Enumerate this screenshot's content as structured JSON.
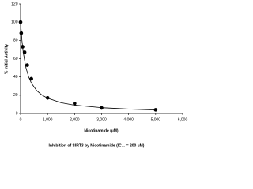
{
  "chart_data": {
    "type": "scatter",
    "title": "Inhibition of SIRT3 by Nicotinamide (IC₅₀ = 200 µM)",
    "xlabel": "Nicotinamide (µM)",
    "ylabel": "% Initial Activity",
    "x": [
      0,
      25,
      75,
      150,
      250,
      400,
      1000,
      2000,
      3000,
      5000
    ],
    "values": [
      100,
      88,
      73,
      67,
      53,
      38,
      17,
      11,
      6,
      4
    ],
    "color": "#000000",
    "fit": {
      "x": [
        0,
        50,
        100,
        200,
        300,
        400,
        600,
        800,
        1000,
        1500,
        2000,
        3000,
        4000,
        5000
      ],
      "values": [
        100,
        80,
        66.7,
        50,
        40,
        33.3,
        25,
        20,
        16.7,
        11.8,
        9.1,
        6.3,
        4.8,
        3.8
      ]
    },
    "xlim": [
      0,
      6000
    ],
    "xticks": [
      0,
      {
        "value": 1000,
        "label": "1,000"
      },
      {
        "value": 2000,
        "label": "2,000"
      },
      {
        "value": 3000,
        "label": "3,000"
      },
      {
        "value": 4000,
        "label": "4,000"
      },
      {
        "value": 5000,
        "label": "5,000"
      },
      {
        "value": 6000,
        "label": "6,000"
      }
    ],
    "ylim": [
      0,
      120
    ],
    "yticks": [
      0,
      20,
      40,
      60,
      80,
      100,
      120
    ]
  }
}
